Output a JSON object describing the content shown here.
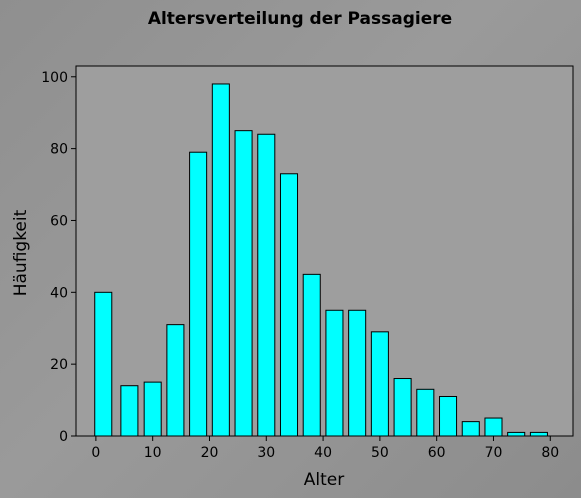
{
  "chart_data": {
    "type": "bar",
    "title": "Altersverteilung der Passagiere",
    "xlabel": "Alter",
    "ylabel": "Häufigkeit",
    "x": [
      1.3,
      5.9,
      10.0,
      14.0,
      18.0,
      22.0,
      26.0,
      30.0,
      34.0,
      38.0,
      42.0,
      46.0,
      50.0,
      54.0,
      58.0,
      62.0,
      66.0,
      70.0,
      74.0,
      78.0
    ],
    "values": [
      40,
      14,
      15,
      31,
      79,
      98,
      85,
      84,
      73,
      45,
      35,
      35,
      29,
      16,
      13,
      11,
      4,
      5,
      1,
      1
    ],
    "xlim": [
      -3.5,
      84
    ],
    "ylim": [
      0,
      103
    ],
    "xticks": [
      0,
      10,
      20,
      30,
      40,
      50,
      60,
      70,
      80
    ],
    "yticks": [
      0,
      20,
      40,
      60,
      80,
      100
    ],
    "grid": false,
    "colors": {
      "bar_fill": "#00ffff",
      "bar_edge": "#000000",
      "plot_background": "#9e9e9e",
      "figure_background": "#939393"
    }
  }
}
